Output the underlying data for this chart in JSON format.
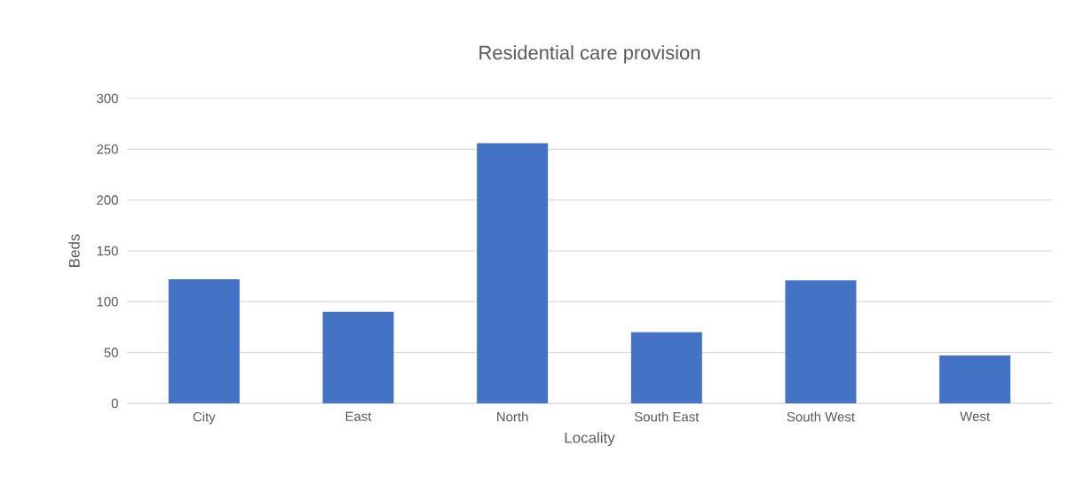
{
  "chart_data": {
    "type": "bar",
    "title": "Residential care provision",
    "xlabel": "Locality",
    "ylabel": "Beds",
    "categories": [
      "City",
      "East",
      "North",
      "South East",
      "South West",
      "West"
    ],
    "values": [
      122,
      90,
      256,
      70,
      121,
      47
    ],
    "color": "#4472c4",
    "ylim": [
      0,
      300
    ],
    "yticks": [
      0,
      50,
      100,
      150,
      200,
      250,
      300
    ],
    "grid": "y"
  }
}
